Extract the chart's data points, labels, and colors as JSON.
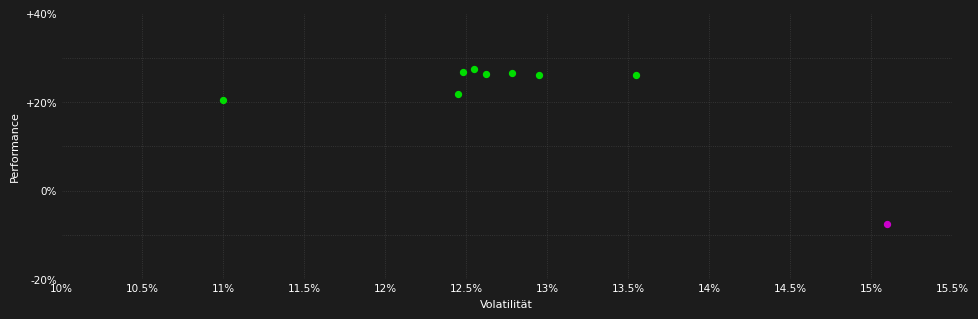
{
  "xlabel": "Volatilität",
  "ylabel": "Performance",
  "background_color": "#1c1c1c",
  "grid_color": "#404040",
  "text_color": "#ffffff",
  "xlim": [
    0.1,
    0.155
  ],
  "ylim": [
    -0.2,
    0.4
  ],
  "xticks": [
    0.1,
    0.105,
    0.11,
    0.115,
    0.12,
    0.125,
    0.13,
    0.135,
    0.14,
    0.145,
    0.15,
    0.155
  ],
  "xtick_labels": [
    "10%",
    "10.5%",
    "11%",
    "11.5%",
    "12%",
    "12.5%",
    "13%",
    "13.5%",
    "14%",
    "14.5%",
    "15%",
    "15.5%"
  ],
  "yticks": [
    -0.2,
    -0.1,
    0.0,
    0.1,
    0.2,
    0.3,
    0.4
  ],
  "ytick_labels": [
    "-20%",
    "",
    "0%",
    "",
    "+20%",
    "",
    "+40%"
  ],
  "green_points": [
    [
      0.11,
      0.205
    ],
    [
      0.1245,
      0.218
    ],
    [
      0.1248,
      0.268
    ],
    [
      0.1255,
      0.275
    ],
    [
      0.1262,
      0.262
    ],
    [
      0.1278,
      0.265
    ],
    [
      0.1295,
      0.26
    ],
    [
      0.1355,
      0.26
    ]
  ],
  "magenta_points": [
    [
      0.151,
      -0.075
    ]
  ],
  "point_color_green": "#00dd00",
  "point_color_magenta": "#cc00cc",
  "point_size": 18
}
